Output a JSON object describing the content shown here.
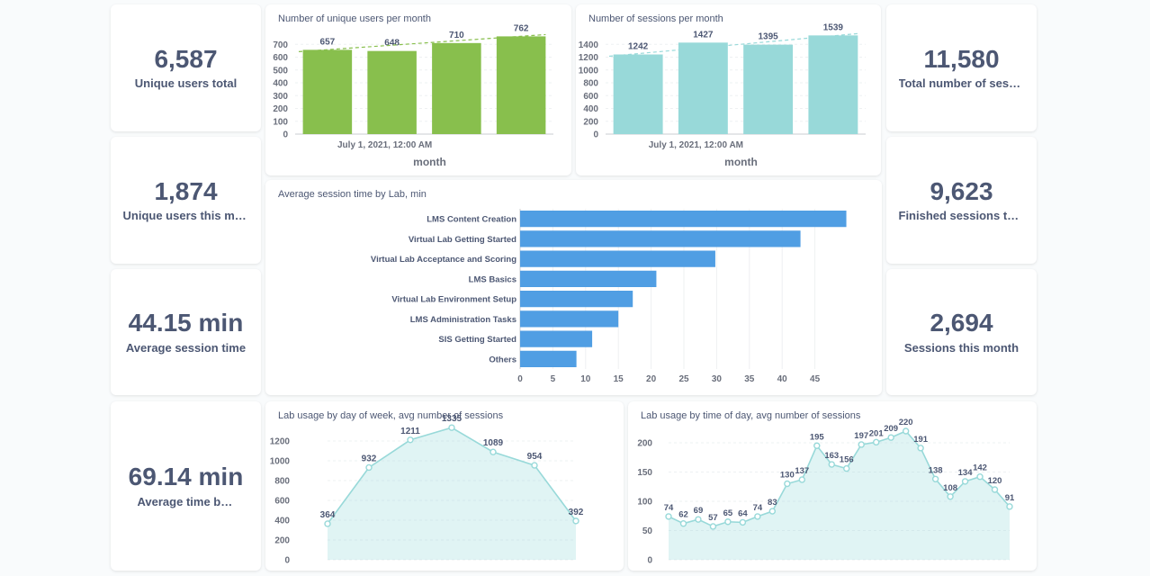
{
  "colors": {
    "users_bar": "#88bf4d",
    "sessions_bar": "#98d9d9",
    "lab_bar": "#509ee3",
    "line": "#98d9d9",
    "text": "#4c5773",
    "axis_text": "#696e7b"
  },
  "kpis": [
    {
      "value": "6,587",
      "label": "Unique users total"
    },
    {
      "value": "1,874",
      "label": "Unique users this month"
    },
    {
      "value": "44.15 min",
      "label": "Average session time"
    },
    {
      "value": "69.14 min",
      "label": "Average time between sessions"
    },
    {
      "value": "11,580",
      "label": "Total number of sessions"
    },
    {
      "value": "9,623",
      "label": "Finished sessions total"
    },
    {
      "value": "2,694",
      "label": "Sessions this month"
    }
  ],
  "chart_data": [
    {
      "type": "bar",
      "title": "Number of unique users per month",
      "xlabel": "month",
      "x_tick_label": "July 1, 2021, 12:00 AM",
      "values": [
        657,
        648,
        710,
        762
      ],
      "data_labels": [
        "657",
        "648",
        "710",
        "762"
      ],
      "yticks": [
        "0",
        "100",
        "200",
        "300",
        "400",
        "500",
        "600",
        "700"
      ],
      "ylim": [
        0,
        800
      ],
      "trend_line": true
    },
    {
      "type": "bar",
      "title": "Number of sessions per month",
      "xlabel": "month",
      "x_tick_label": "July 1, 2021, 12:00 AM",
      "values": [
        1242,
        1427,
        1395,
        1539
      ],
      "data_labels": [
        "1242",
        "1427",
        "1395",
        "1539"
      ],
      "yticks": [
        "0",
        "200",
        "400",
        "600",
        "800",
        "1000",
        "1200",
        "1400"
      ],
      "ylim": [
        0,
        1600
      ],
      "trend_line": true
    },
    {
      "type": "bar",
      "orientation": "horizontal",
      "title": "Average session time by Lab, min",
      "categories": [
        "LMS Content Creation",
        "Virtual Lab Getting Started",
        "Virtual Lab Acceptance and Scoring",
        "LMS Basics",
        "Virtual Lab Environment Setup",
        "LMS Administration Tasks",
        "SIS Getting Started",
        "Others"
      ],
      "values": [
        49.8,
        42.8,
        29.8,
        20.8,
        17.2,
        15.0,
        11.0,
        8.6
      ],
      "xticks": [
        "0",
        "5",
        "10",
        "15",
        "20",
        "25",
        "30",
        "35",
        "40",
        "45"
      ],
      "xlim": [
        0,
        50
      ]
    },
    {
      "type": "area",
      "title": "Lab usage by day of week, avg number of sessions",
      "values": [
        364,
        932,
        1211,
        1335,
        1089,
        954,
        392
      ],
      "data_labels": [
        "364",
        "932",
        "1211",
        "1335",
        "1089",
        "954",
        "392"
      ],
      "yticks": [
        "0",
        "200",
        "400",
        "600",
        "800",
        "1000",
        "1200"
      ],
      "ylim": [
        0,
        1300
      ]
    },
    {
      "type": "area",
      "title": "Lab usage by time of day, avg number of sessions",
      "values": [
        74,
        62,
        69,
        57,
        65,
        64,
        74,
        83,
        130,
        137,
        195,
        163,
        156,
        197,
        201,
        209,
        220,
        191,
        138,
        108,
        134,
        142,
        120,
        91
      ],
      "data_labels": [
        "74",
        "62",
        "69",
        "57",
        "65",
        "64",
        "74",
        "83",
        "130",
        "137",
        "195",
        "163",
        "156",
        "197",
        "201",
        "209",
        "220",
        "191",
        "138",
        "108",
        "134",
        "142",
        "120",
        "91"
      ],
      "yticks": [
        "0",
        "50",
        "100",
        "150",
        "200"
      ],
      "ylim": [
        0,
        220
      ]
    }
  ]
}
